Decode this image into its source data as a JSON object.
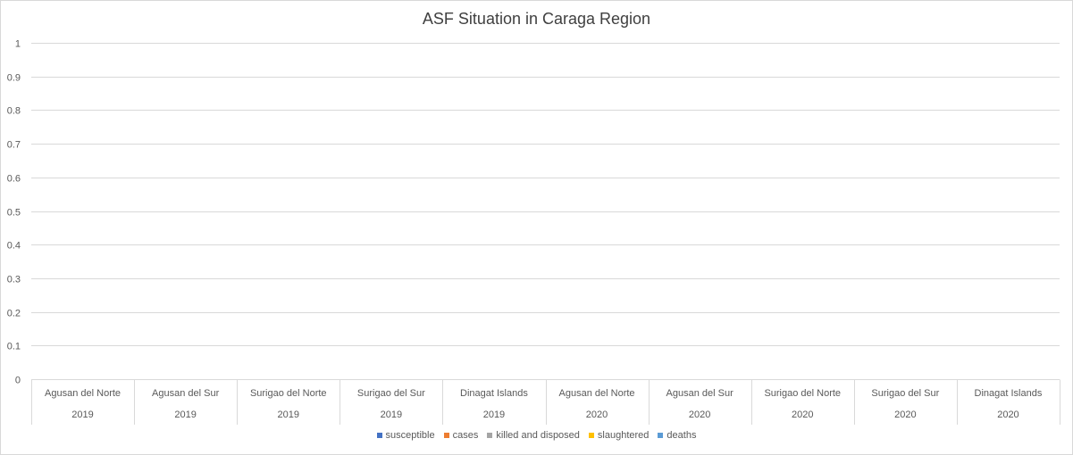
{
  "chart_data": {
    "type": "bar",
    "title": "ASF Situation in Caraga Region",
    "categories": [
      {
        "province": "Agusan del Norte",
        "year": "2019"
      },
      {
        "province": "Agusan del Sur",
        "year": "2019"
      },
      {
        "province": "Surigao del Norte",
        "year": "2019"
      },
      {
        "province": "Surigao del Sur",
        "year": "2019"
      },
      {
        "province": "Dinagat Islands",
        "year": "2019"
      },
      {
        "province": "Agusan del Norte",
        "year": "2020"
      },
      {
        "province": "Agusan del Sur",
        "year": "2020"
      },
      {
        "province": "Surigao del Norte",
        "year": "2020"
      },
      {
        "province": "Surigao del Sur",
        "year": "2020"
      },
      {
        "province": "Dinagat Islands",
        "year": "2020"
      }
    ],
    "series": [
      {
        "name": "susceptible",
        "color": "#4472c4",
        "values": [
          null,
          null,
          null,
          null,
          null,
          null,
          null,
          null,
          null,
          null
        ]
      },
      {
        "name": "cases",
        "color": "#ed7d31",
        "values": [
          null,
          null,
          null,
          null,
          null,
          null,
          null,
          null,
          null,
          null
        ]
      },
      {
        "name": "killed and disposed",
        "color": "#a5a5a5",
        "values": [
          null,
          null,
          null,
          null,
          null,
          null,
          null,
          null,
          null,
          null
        ]
      },
      {
        "name": "slaughtered",
        "color": "#ffc000",
        "values": [
          null,
          null,
          null,
          null,
          null,
          null,
          null,
          null,
          null,
          null
        ]
      },
      {
        "name": "deaths",
        "color": "#5b9bd5",
        "values": [
          null,
          null,
          null,
          null,
          null,
          null,
          null,
          null,
          null,
          null
        ]
      }
    ],
    "y_ticks": [
      "0",
      "0.1",
      "0.2",
      "0.3",
      "0.4",
      "0.5",
      "0.6",
      "0.7",
      "0.8",
      "0.9",
      "1"
    ],
    "ylim": [
      0,
      1
    ],
    "grid": true,
    "legend_position": "bottom"
  }
}
